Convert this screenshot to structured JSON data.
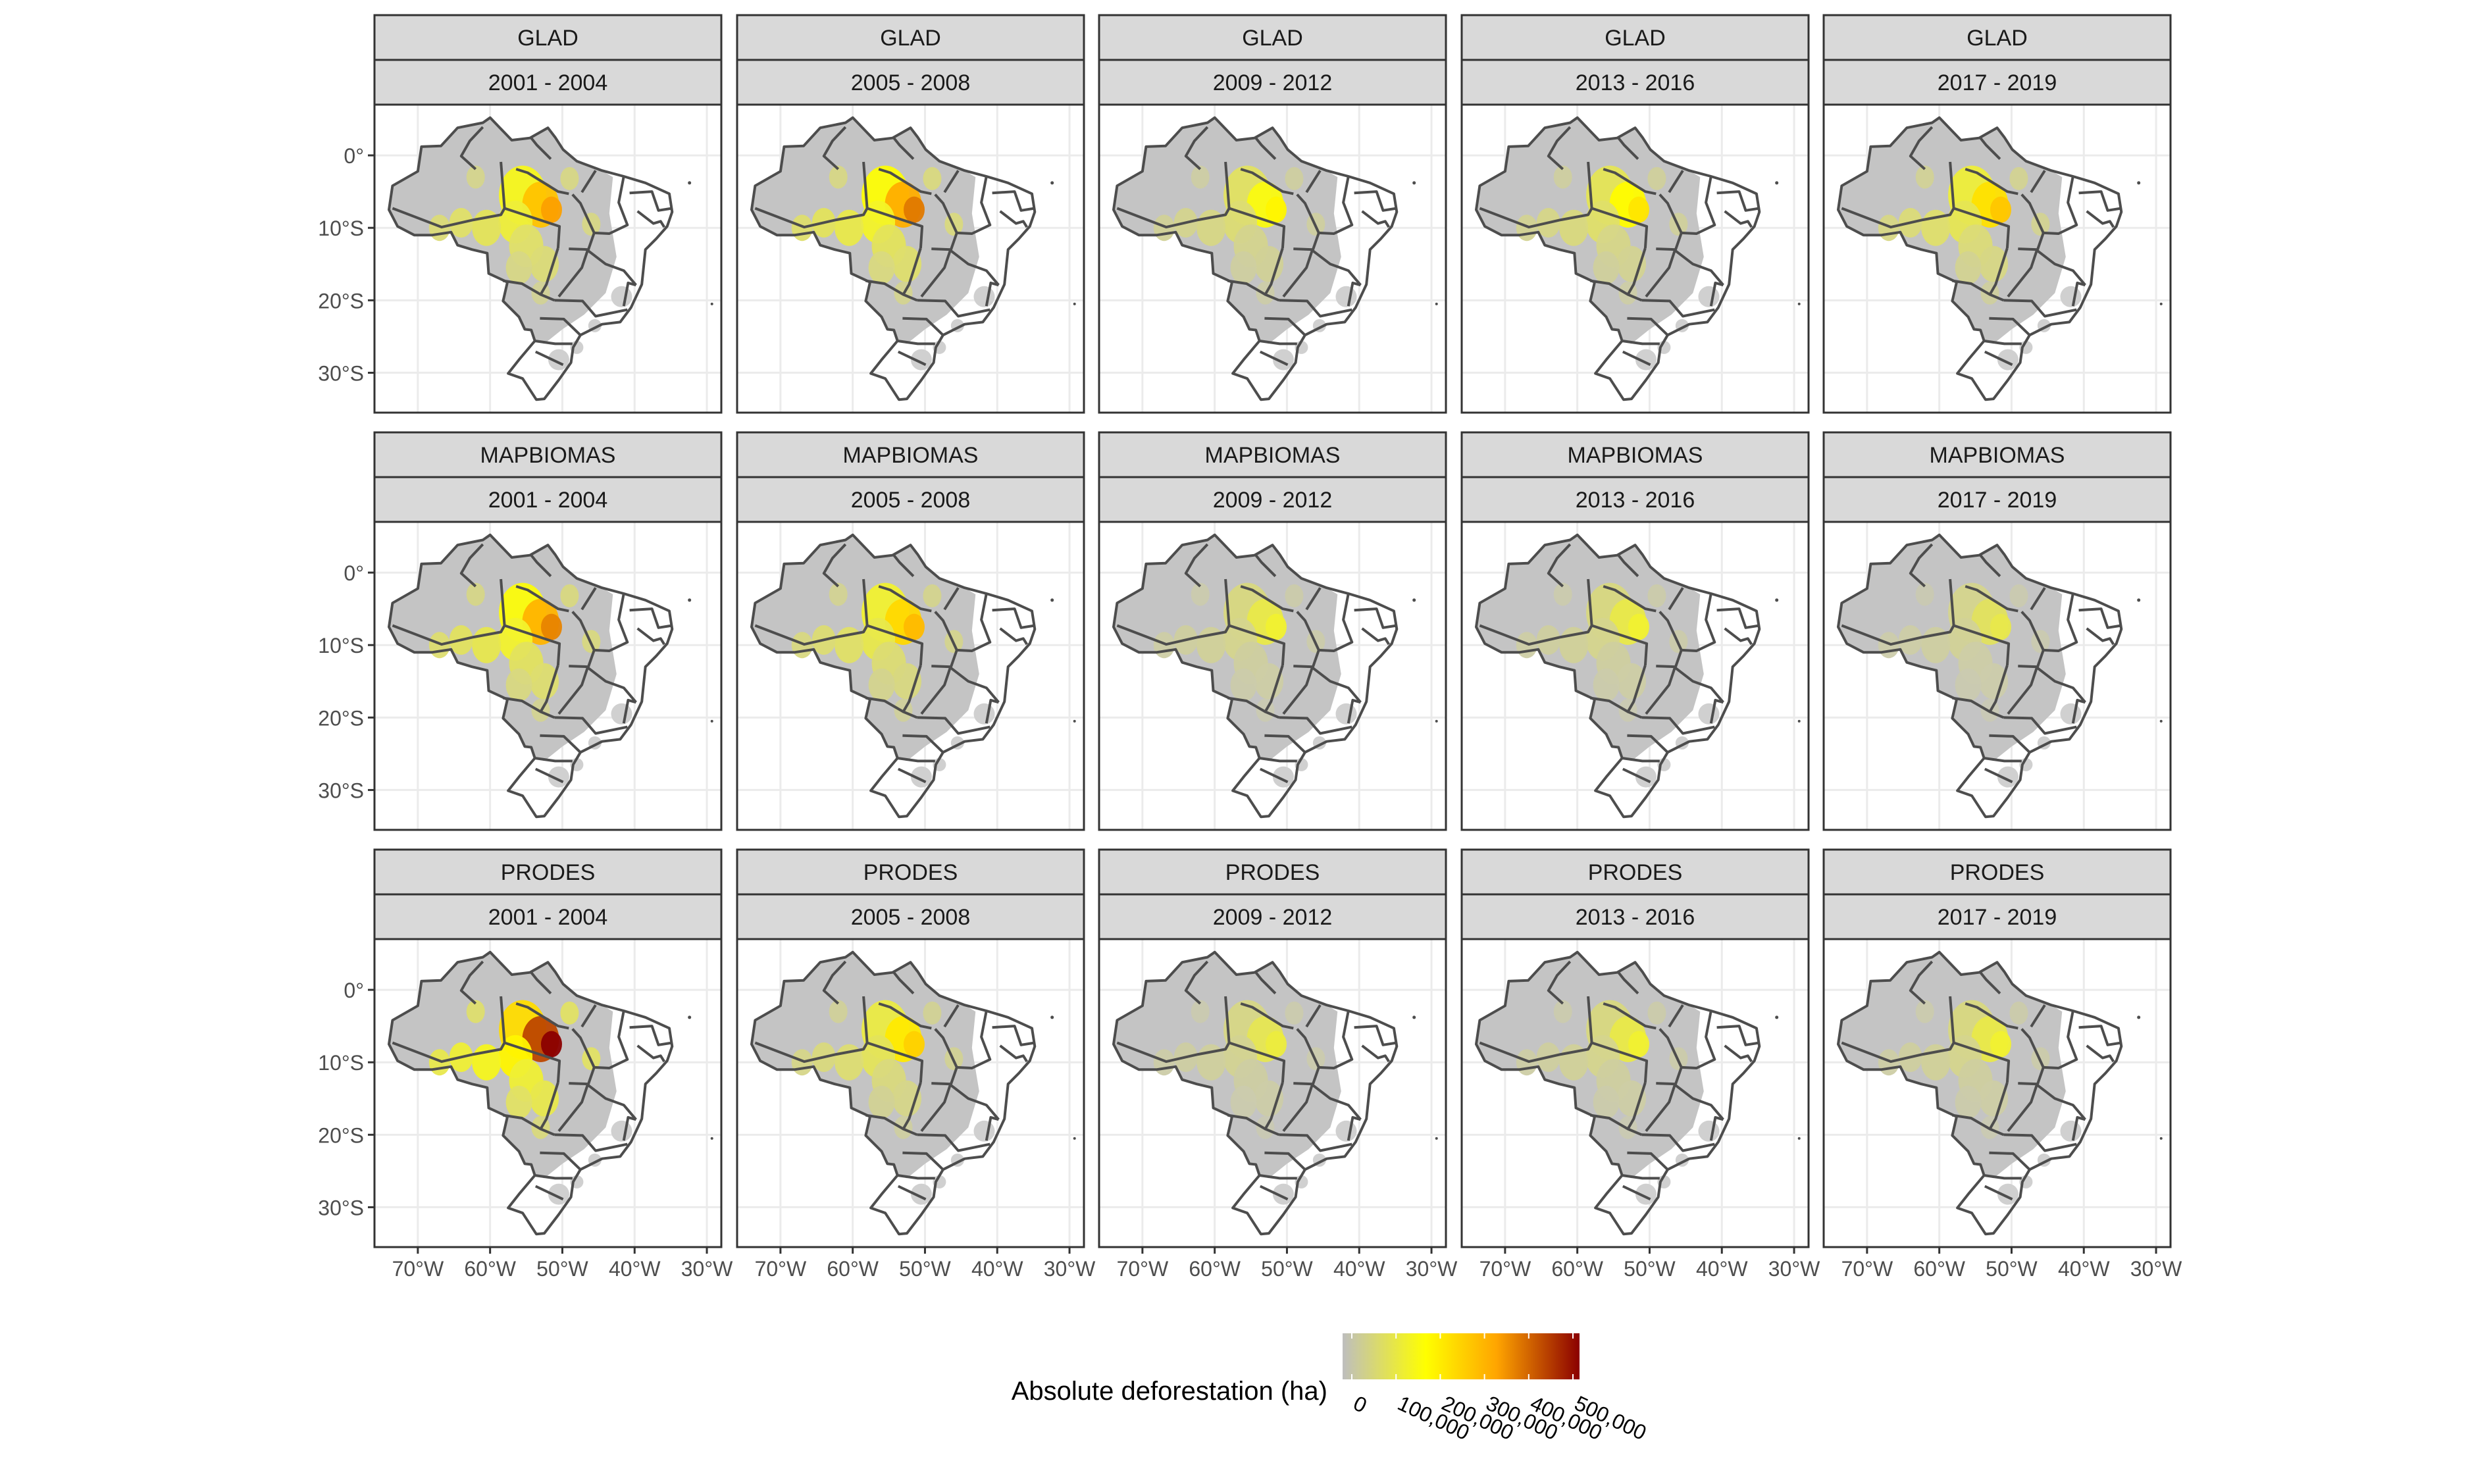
{
  "rows": [
    "GLAD",
    "MAPBIOMAS",
    "PRODES"
  ],
  "columns": [
    "2001 - 2004",
    "2005 - 2008",
    "2009 - 2012",
    "2013 - 2016",
    "2017 - 2019"
  ],
  "y_ticks": [
    {
      "label": "0°",
      "lat": 0
    },
    {
      "label": "10°S",
      "lat": -10
    },
    {
      "label": "20°S",
      "lat": -20
    },
    {
      "label": "30°S",
      "lat": -30
    }
  ],
  "x_ticks": [
    {
      "label": "70°W",
      "lon": -70
    },
    {
      "label": "60°W",
      "lon": -60
    },
    {
      "label": "50°W",
      "lon": -50
    },
    {
      "label": "40°W",
      "lon": -40
    },
    {
      "label": "30°W",
      "lon": -30
    }
  ],
  "legend": {
    "title": "Absolute deforestation (ha)",
    "breaks": [
      "0",
      "100,000",
      "200,000",
      "300,000",
      "400,000",
      "500,000"
    ],
    "colors": [
      "#bebebe",
      "#ffff00",
      "#ffa500",
      "#8b0000"
    ]
  },
  "colors": {
    "strip_fill": "#d9d9d9",
    "panel_border": "#333333",
    "grid": "#ebebeb",
    "low_fill": "#c4c4c4",
    "state_border": "#4d4d4d"
  },
  "hotspot_intensity": [
    [
      0.55,
      0.62,
      0.32,
      0.36,
      0.45
    ],
    [
      0.6,
      0.48,
      0.22,
      0.22,
      0.18
    ],
    [
      0.85,
      0.42,
      0.2,
      0.22,
      0.22
    ]
  ]
}
